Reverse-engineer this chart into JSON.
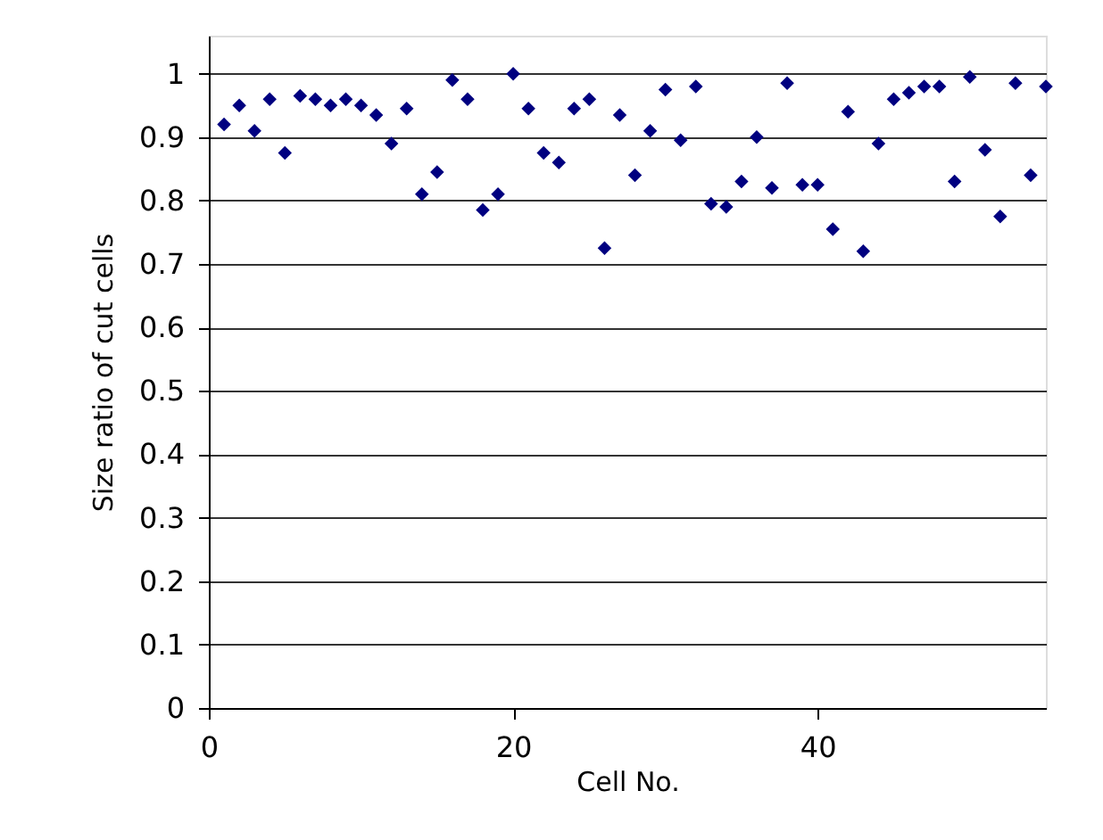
{
  "chart_data": {
    "type": "scatter",
    "xlabel": "Cell No.",
    "ylabel": "Size ratio of cut cells",
    "x": [
      1,
      2,
      3,
      4,
      5,
      6,
      7,
      8,
      9,
      10,
      11,
      12,
      13,
      14,
      15,
      16,
      17,
      18,
      19,
      20,
      21,
      22,
      23,
      24,
      25,
      26,
      27,
      28,
      29,
      30,
      31,
      32,
      33,
      34,
      35,
      36,
      37,
      38,
      39,
      40,
      41,
      42,
      43,
      44,
      45,
      46,
      47,
      48,
      49,
      50,
      51,
      52,
      53,
      54,
      55
    ],
    "series": [
      {
        "color": "#000080",
        "values": [
          0.92,
          0.95,
          0.91,
          0.96,
          0.875,
          0.965,
          0.96,
          0.95,
          0.96,
          0.95,
          0.935,
          0.89,
          0.945,
          0.81,
          0.845,
          0.99,
          0.96,
          0.785,
          0.81,
          1.0,
          0.945,
          0.875,
          0.86,
          0.945,
          0.96,
          0.725,
          0.935,
          0.84,
          0.91,
          0.975,
          0.895,
          0.98,
          0.795,
          0.79,
          0.83,
          0.9,
          0.82,
          0.985,
          0.825,
          0.825,
          0.755,
          0.94,
          0.72,
          0.89,
          0.96,
          0.97,
          0.98,
          0.98,
          0.83,
          0.995,
          0.88,
          0.775,
          0.985,
          0.84,
          0.98
        ]
      }
    ],
    "xlim": [
      0,
      55
    ],
    "xticks": [
      0,
      20,
      40
    ],
    "ylim": [
      0,
      1.06
    ],
    "yticks": [
      0,
      0.1,
      0.2,
      0.3,
      0.4,
      0.5,
      0.6,
      0.7,
      0.8,
      0.9,
      1
    ],
    "grid": "y",
    "marker": "diamond",
    "legend": false
  }
}
